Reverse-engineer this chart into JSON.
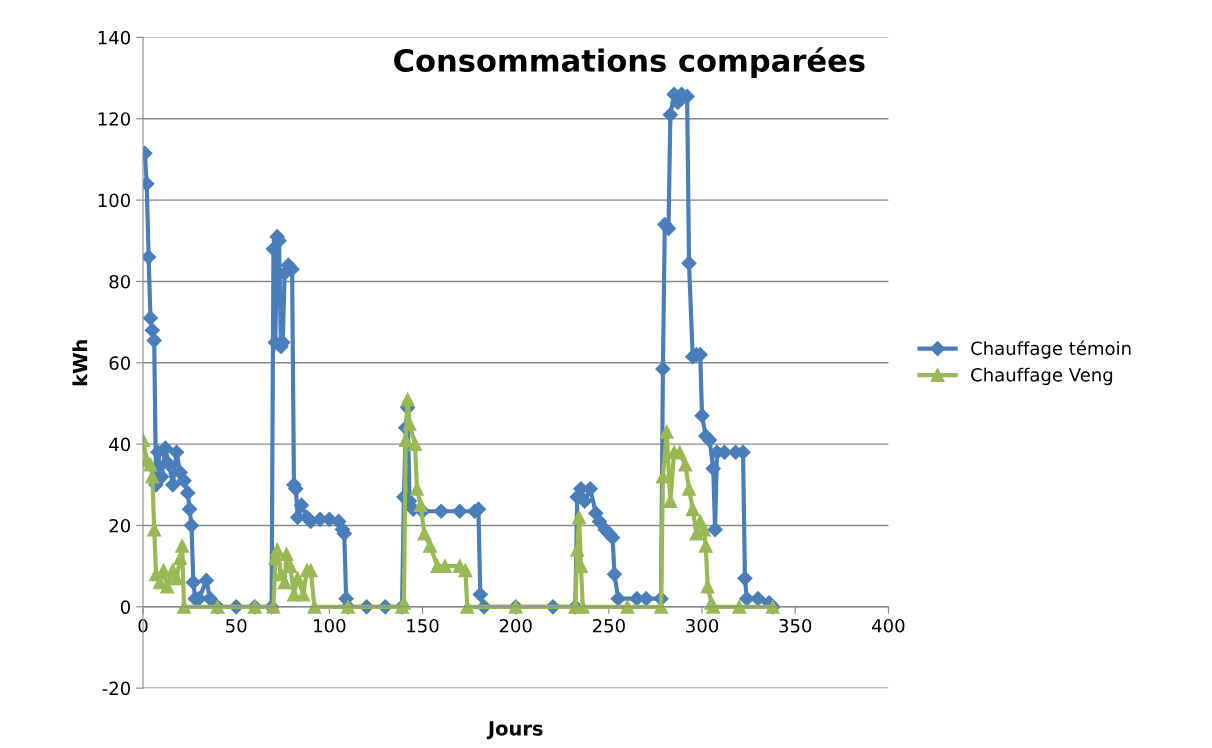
{
  "chart_data": {
    "type": "line",
    "title": "Consommations comparées",
    "xlabel": "Jours",
    "ylabel": "kWh",
    "xlim": [
      0,
      400
    ],
    "xticks": [
      0,
      50,
      100,
      150,
      200,
      250,
      300,
      350,
      400
    ],
    "ylim": [
      -20,
      140
    ],
    "yticks": [
      -20,
      0,
      20,
      40,
      60,
      80,
      100,
      120,
      140
    ],
    "grid": "y",
    "legend": "right",
    "series": [
      {
        "name": "Chauffage témoin",
        "color": "#4a7ebb",
        "marker": "diamond",
        "x": [
          1,
          2,
          3,
          4,
          5,
          6,
          7,
          8,
          10,
          12,
          14,
          16,
          18,
          20,
          22,
          24,
          25,
          26,
          27,
          28,
          30,
          34,
          36,
          40,
          50,
          60,
          69,
          70,
          71,
          72,
          73,
          74,
          75,
          76,
          78,
          80,
          81,
          82,
          83,
          85,
          88,
          90,
          95,
          100,
          105,
          107,
          108,
          109,
          110,
          120,
          130,
          139,
          140,
          141,
          142,
          143,
          145,
          150,
          160,
          170,
          178,
          180,
          181,
          183,
          200,
          220,
          232,
          233,
          235,
          237,
          240,
          243,
          245,
          248,
          250,
          252,
          253,
          255,
          265,
          270,
          278,
          279,
          280,
          282,
          283,
          285,
          287,
          289,
          292,
          293,
          295,
          297,
          299,
          300,
          302,
          304,
          306,
          307,
          308,
          312,
          318,
          322,
          323,
          324,
          330,
          336,
          338
        ],
        "values": [
          111.5,
          104,
          86,
          71,
          68,
          65.5,
          30,
          38,
          32,
          39,
          35,
          30,
          38,
          33,
          31,
          28,
          24,
          20,
          6,
          2,
          2,
          6.5,
          2,
          0,
          0,
          0,
          0,
          88,
          65,
          91,
          90,
          64,
          65,
          82,
          84,
          83,
          30,
          29,
          22,
          25,
          22,
          21,
          21.5,
          21.5,
          21,
          19,
          18,
          2,
          0,
          0,
          0,
          0,
          27,
          44,
          49,
          26,
          24,
          23.5,
          23.5,
          23.5,
          23.5,
          24,
          3,
          0,
          0,
          0,
          0,
          27,
          29,
          26,
          29,
          23,
          21,
          19,
          18,
          17,
          8,
          2,
          2,
          2,
          2,
          58.5,
          94,
          93,
          121,
          126,
          124,
          126,
          125.5,
          84.5,
          61.5,
          62,
          62,
          47,
          42,
          41,
          34,
          19,
          38,
          38,
          38,
          38,
          7,
          2,
          2,
          1,
          0
        ]
      },
      {
        "name": "Chauffage Veng",
        "color": "#98b954",
        "marker": "triangle",
        "x": [
          0,
          2,
          4,
          5,
          6,
          7,
          9,
          11,
          13,
          16,
          18,
          20,
          21,
          22,
          40,
          60,
          70,
          71,
          72,
          74,
          76,
          77,
          79,
          81,
          83,
          86,
          88,
          90,
          92,
          110,
          139,
          140,
          141,
          142,
          143,
          146,
          147,
          149,
          151,
          154,
          158,
          162,
          170,
          173,
          174,
          200,
          232,
          233,
          234,
          235,
          236,
          260,
          278,
          279,
          281,
          283,
          285,
          288,
          291,
          293,
          295,
          297,
          299,
          301,
          302,
          303,
          305,
          306,
          320,
          338
        ],
        "values": [
          41,
          36,
          35,
          32,
          19,
          8,
          6,
          9,
          5,
          9,
          7,
          12,
          15,
          0,
          0,
          0,
          0,
          12,
          14,
          8,
          6,
          13,
          10,
          3,
          7,
          3,
          9,
          9,
          0,
          0,
          0,
          1,
          41,
          51,
          45,
          40,
          29,
          25,
          18,
          15,
          10,
          10,
          10,
          9,
          0,
          0,
          0,
          14,
          22,
          10,
          0,
          0,
          0,
          32,
          43,
          26,
          38,
          38,
          35,
          29,
          24,
          18,
          21,
          19,
          15,
          5,
          1,
          0,
          0,
          0
        ]
      }
    ]
  }
}
